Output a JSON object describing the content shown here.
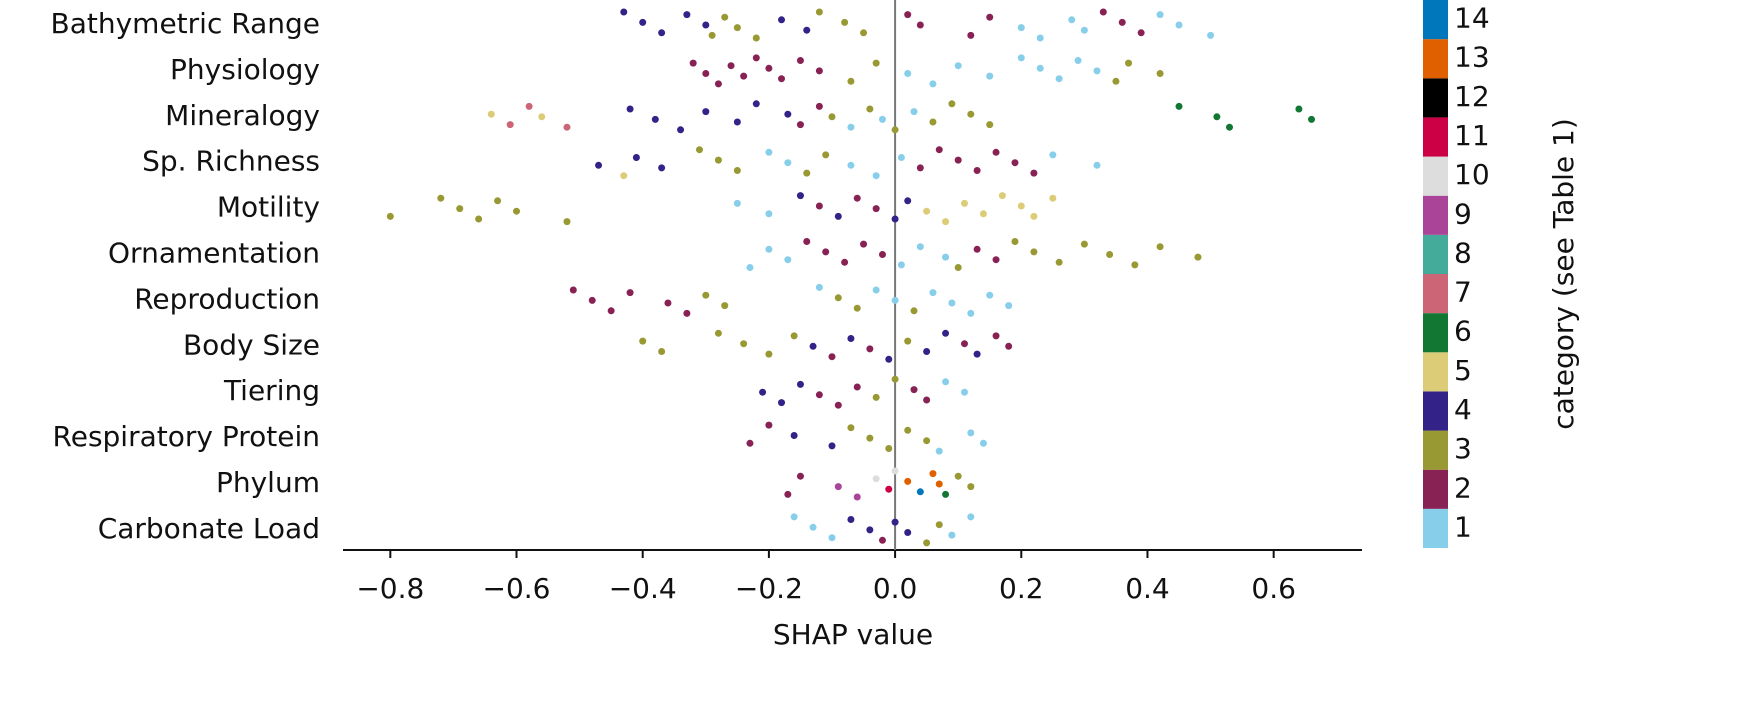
{
  "chart_data": {
    "type": "beeswarm",
    "xlabel": "SHAP value",
    "xlim": [
      -0.875,
      0.74
    ],
    "xticks": [
      {
        "value": -0.8,
        "label": "−0.8"
      },
      {
        "value": -0.6,
        "label": "−0.6"
      },
      {
        "value": -0.4,
        "label": "−0.4"
      },
      {
        "value": -0.2,
        "label": "−0.2"
      },
      {
        "value": 0,
        "label": "0.0"
      },
      0.2,
      0.4,
      0.6
    ],
    "colorbar": {
      "label": "category (see Table 1)",
      "ticks": [
        1,
        2,
        3,
        4,
        5,
        6,
        7,
        8,
        9,
        10,
        11,
        12,
        13,
        14
      ],
      "colors": [
        "#87ceeb",
        "#882255",
        "#999933",
        "#332288",
        "#ddcc77",
        "#117733",
        "#cc6677",
        "#44aa99",
        "#aa4499",
        "#dddddd",
        "#cc0044",
        "#000000",
        "#e06000",
        "#0077bb"
      ]
    },
    "features": [
      {
        "name": "Bathymetric Range",
        "x": [
          -0.43,
          -0.4,
          -0.37,
          -0.33,
          -0.3,
          -0.29,
          -0.27,
          -0.25,
          -0.22,
          -0.18,
          -0.14,
          -0.12,
          -0.08,
          -0.05,
          0.02,
          0.04,
          0.12,
          0.15,
          0.2,
          0.23,
          0.28,
          0.3,
          0.33,
          0.36,
          0.39,
          0.42,
          0.45,
          0.5
        ],
        "category": [
          4,
          4,
          4,
          4,
          4,
          3,
          3,
          3,
          3,
          4,
          4,
          3,
          3,
          3,
          2,
          2,
          2,
          2,
          1,
          1,
          1,
          1,
          2,
          2,
          2,
          1,
          1,
          1
        ]
      },
      {
        "name": "Physiology",
        "x": [
          -0.32,
          -0.3,
          -0.28,
          -0.26,
          -0.24,
          -0.22,
          -0.2,
          -0.18,
          -0.15,
          -0.12,
          -0.07,
          -0.03,
          0.02,
          0.06,
          0.1,
          0.15,
          0.2,
          0.23,
          0.26,
          0.29,
          0.32,
          0.35,
          0.37,
          0.42
        ],
        "category": [
          2,
          2,
          2,
          2,
          2,
          2,
          2,
          2,
          2,
          2,
          3,
          3,
          1,
          1,
          1,
          1,
          1,
          1,
          1,
          1,
          1,
          3,
          3,
          3
        ]
      },
      {
        "name": "Mineralogy",
        "x": [
          -0.64,
          -0.61,
          -0.58,
          -0.56,
          -0.52,
          -0.42,
          -0.38,
          -0.34,
          -0.3,
          -0.25,
          -0.22,
          -0.17,
          -0.15,
          -0.12,
          -0.1,
          -0.07,
          -0.04,
          -0.02,
          0.0,
          0.03,
          0.06,
          0.09,
          0.12,
          0.15,
          0.45,
          0.51,
          0.53,
          0.64,
          0.66
        ],
        "category": [
          5,
          7,
          7,
          5,
          7,
          4,
          4,
          4,
          4,
          4,
          4,
          4,
          2,
          2,
          3,
          1,
          3,
          1,
          3,
          1,
          3,
          3,
          3,
          3,
          6,
          6,
          6,
          6,
          6
        ]
      },
      {
        "name": "Sp. Richness",
        "x": [
          -0.47,
          -0.43,
          -0.41,
          -0.37,
          -0.31,
          -0.28,
          -0.25,
          -0.2,
          -0.17,
          -0.14,
          -0.11,
          -0.07,
          -0.03,
          0.01,
          0.04,
          0.07,
          0.1,
          0.13,
          0.16,
          0.19,
          0.22,
          0.25,
          0.32
        ],
        "category": [
          4,
          5,
          4,
          4,
          3,
          3,
          3,
          1,
          1,
          3,
          3,
          1,
          1,
          1,
          2,
          2,
          2,
          2,
          2,
          2,
          2,
          1,
          1
        ]
      },
      {
        "name": "Motility",
        "x": [
          -0.8,
          -0.72,
          -0.69,
          -0.66,
          -0.63,
          -0.6,
          -0.52,
          -0.25,
          -0.2,
          -0.15,
          -0.12,
          -0.09,
          -0.06,
          -0.03,
          0.0,
          0.02,
          0.05,
          0.08,
          0.11,
          0.14,
          0.17,
          0.2,
          0.22,
          0.25
        ],
        "category": [
          3,
          3,
          3,
          3,
          3,
          3,
          3,
          1,
          1,
          4,
          2,
          4,
          2,
          2,
          4,
          4,
          5,
          5,
          5,
          5,
          5,
          5,
          5,
          5
        ]
      },
      {
        "name": "Ornamentation",
        "x": [
          -0.23,
          -0.2,
          -0.17,
          -0.14,
          -0.11,
          -0.08,
          -0.05,
          -0.02,
          0.01,
          0.04,
          0.08,
          0.1,
          0.13,
          0.16,
          0.19,
          0.22,
          0.26,
          0.3,
          0.34,
          0.38,
          0.42,
          0.48
        ],
        "category": [
          1,
          1,
          1,
          2,
          2,
          2,
          2,
          2,
          1,
          1,
          1,
          3,
          2,
          2,
          3,
          3,
          3,
          3,
          3,
          3,
          3,
          3
        ]
      },
      {
        "name": "Reproduction",
        "x": [
          -0.51,
          -0.48,
          -0.45,
          -0.42,
          -0.36,
          -0.33,
          -0.3,
          -0.27,
          -0.12,
          -0.09,
          -0.06,
          -0.03,
          0.0,
          0.03,
          0.06,
          0.09,
          0.12,
          0.15,
          0.18
        ],
        "category": [
          2,
          2,
          2,
          2,
          2,
          2,
          3,
          3,
          1,
          3,
          3,
          1,
          1,
          3,
          1,
          1,
          1,
          1,
          1
        ]
      },
      {
        "name": "Body Size",
        "x": [
          -0.4,
          -0.37,
          -0.28,
          -0.24,
          -0.2,
          -0.16,
          -0.13,
          -0.1,
          -0.07,
          -0.04,
          -0.01,
          0.02,
          0.05,
          0.08,
          0.11,
          0.13,
          0.16,
          0.18
        ],
        "category": [
          3,
          3,
          3,
          3,
          3,
          3,
          4,
          2,
          4,
          2,
          4,
          3,
          4,
          4,
          2,
          4,
          2,
          2
        ]
      },
      {
        "name": "Tiering",
        "x": [
          -0.21,
          -0.18,
          -0.15,
          -0.12,
          -0.09,
          -0.06,
          -0.03,
          0.0,
          0.03,
          0.05,
          0.08,
          0.11
        ],
        "category": [
          4,
          4,
          4,
          2,
          2,
          2,
          3,
          3,
          2,
          2,
          1,
          1
        ]
      },
      {
        "name": "Respiratory Protein",
        "x": [
          -0.23,
          -0.2,
          -0.16,
          -0.1,
          -0.07,
          -0.04,
          -0.01,
          0.02,
          0.05,
          0.07,
          0.12,
          0.14
        ],
        "category": [
          2,
          2,
          4,
          4,
          3,
          3,
          3,
          3,
          3,
          1,
          1,
          1
        ]
      },
      {
        "name": "Phylum",
        "x": [
          -0.17,
          -0.15,
          -0.09,
          -0.06,
          -0.03,
          -0.01,
          0.0,
          0.02,
          0.04,
          0.06,
          0.07,
          0.08,
          0.1,
          0.12
        ],
        "category": [
          2,
          2,
          9,
          9,
          10,
          11,
          10,
          13,
          14,
          13,
          13,
          6,
          3,
          3
        ]
      },
      {
        "name": "Carbonate Load",
        "x": [
          -0.16,
          -0.13,
          -0.1,
          -0.07,
          -0.04,
          -0.02,
          0.0,
          0.02,
          0.05,
          0.07,
          0.09,
          0.12
        ],
        "category": [
          1,
          1,
          1,
          4,
          4,
          2,
          4,
          4,
          3,
          3,
          1,
          1
        ]
      }
    ]
  }
}
